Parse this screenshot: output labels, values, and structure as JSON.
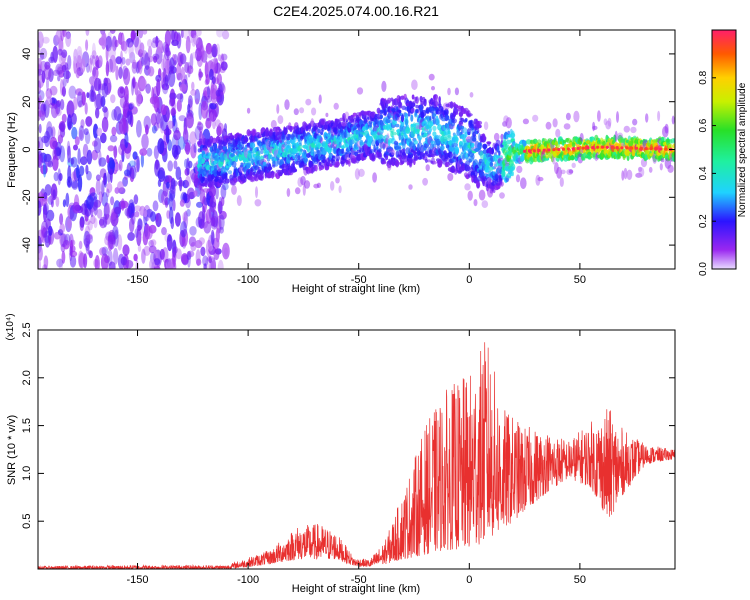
{
  "figure": {
    "title": "C2E4.2025.074.00.16.R21"
  },
  "chart_data": [
    {
      "type": "heatmap",
      "xlabel": "Height of straight line (km)",
      "ylabel": "Frequency (Hz)",
      "xlim": [
        -195,
        93
      ],
      "ylim": [
        -50,
        50
      ],
      "xticks": [
        -150,
        -100,
        -50,
        0,
        50
      ],
      "yticks": [
        -40,
        -20,
        0,
        20,
        40
      ],
      "colorbar": {
        "label": "Normalized spectral amplitude",
        "range": [
          0,
          1
        ],
        "ticks": [
          0.0,
          0.2,
          0.4,
          0.6,
          0.8
        ],
        "tick_labels": [
          "0.0",
          "0.2",
          "0.4",
          "0.6",
          "0.8"
        ]
      },
      "features": {
        "noisy_region_x": [
          -195,
          -110
        ],
        "band_center_freq": [
          {
            "x": -120,
            "f": -6
          },
          {
            "x": -100,
            "f": -3
          },
          {
            "x": -80,
            "f": 0
          },
          {
            "x": -60,
            "f": 3
          },
          {
            "x": -45,
            "f": 6
          },
          {
            "x": -30,
            "f": 8
          },
          {
            "x": -15,
            "f": 8
          },
          {
            "x": 0,
            "f": 2
          },
          {
            "x": 10,
            "f": -8
          },
          {
            "x": 20,
            "f": -1
          },
          {
            "x": 40,
            "f": 0
          },
          {
            "x": 60,
            "f": 1
          },
          {
            "x": 93,
            "f": 0
          }
        ],
        "peak_amplitude_region_x": [
          25,
          93
        ]
      },
      "grid": false
    },
    {
      "type": "line",
      "xlabel": "Height of straight line (km)",
      "ylabel": "SNR (10 * v/v)",
      "y_multiplier": "(x10⁴)",
      "xlim": [
        -195,
        93
      ],
      "ylim": [
        0,
        2.5
      ],
      "xticks": [
        -150,
        -100,
        -50,
        0,
        50
      ],
      "yticks": [
        0.5,
        1.0,
        1.5,
        2.0,
        2.5
      ],
      "ytick_labels": [
        "0.5",
        "1.0",
        "1.5",
        "2.0",
        "2.5"
      ],
      "series": [
        {
          "color": "#e8302f",
          "envelope": [
            {
              "x": -195,
              "lo": 0.0,
              "hi": 0.03
            },
            {
              "x": -150,
              "lo": 0.0,
              "hi": 0.04
            },
            {
              "x": -110,
              "lo": 0.0,
              "hi": 0.04
            },
            {
              "x": -100,
              "lo": 0.02,
              "hi": 0.12
            },
            {
              "x": -90,
              "lo": 0.05,
              "hi": 0.2
            },
            {
              "x": -78,
              "lo": 0.1,
              "hi": 0.45
            },
            {
              "x": -68,
              "lo": 0.1,
              "hi": 0.48
            },
            {
              "x": -60,
              "lo": 0.1,
              "hi": 0.38
            },
            {
              "x": -52,
              "lo": 0.03,
              "hi": 0.12
            },
            {
              "x": -45,
              "lo": 0.02,
              "hi": 0.1
            },
            {
              "x": -38,
              "lo": 0.05,
              "hi": 0.3
            },
            {
              "x": -30,
              "lo": 0.1,
              "hi": 0.8
            },
            {
              "x": -20,
              "lo": 0.15,
              "hi": 1.5
            },
            {
              "x": -10,
              "lo": 0.2,
              "hi": 1.9
            },
            {
              "x": 0,
              "lo": 0.2,
              "hi": 2.05
            },
            {
              "x": 8,
              "lo": 0.3,
              "hi": 2.45
            },
            {
              "x": 15,
              "lo": 0.4,
              "hi": 1.7
            },
            {
              "x": 25,
              "lo": 0.6,
              "hi": 1.5
            },
            {
              "x": 35,
              "lo": 0.8,
              "hi": 1.45
            },
            {
              "x": 45,
              "lo": 0.95,
              "hi": 1.35
            },
            {
              "x": 55,
              "lo": 0.85,
              "hi": 1.55
            },
            {
              "x": 63,
              "lo": 0.5,
              "hi": 1.7
            },
            {
              "x": 70,
              "lo": 0.8,
              "hi": 1.45
            },
            {
              "x": 80,
              "lo": 1.1,
              "hi": 1.3
            },
            {
              "x": 93,
              "lo": 1.15,
              "hi": 1.25
            }
          ]
        }
      ],
      "grid": false
    }
  ]
}
